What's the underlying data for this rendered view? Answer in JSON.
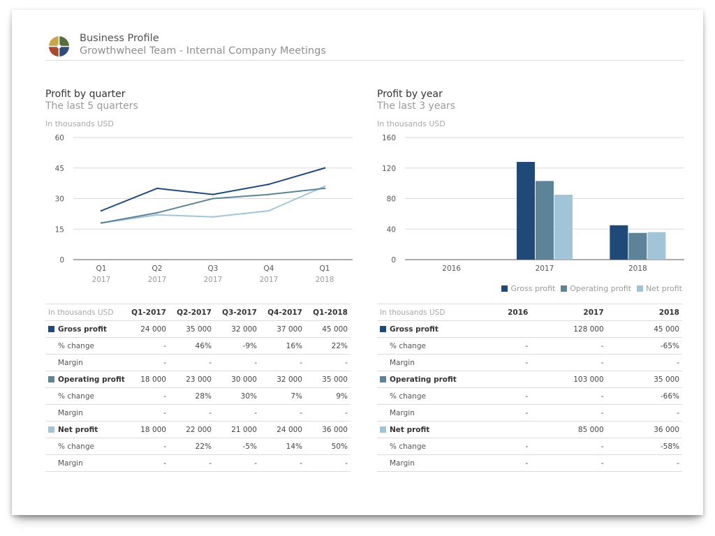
{
  "header": {
    "title": "Business Profile",
    "subtitle": "Growthwheel Team - Internal Company Meetings"
  },
  "colors": {
    "gross": "#1f4a78",
    "operating": "#5d8398",
    "net": "#a1c4d8",
    "logo": [
      "#c8a74a",
      "#566d3c",
      "#2f4b7c",
      "#a9492d"
    ]
  },
  "left_panel": {
    "title": "Profit by quarter",
    "subtitle": "The last 5 quarters",
    "unit": "In thousands USD"
  },
  "right_panel": {
    "title": "Profit by year",
    "subtitle": "The last 3 years",
    "unit": "In thousands USD"
  },
  "legend": [
    {
      "label": "Gross profit",
      "key": "gross"
    },
    {
      "label": "Operating profit",
      "key": "operating"
    },
    {
      "label": "Net profit",
      "key": "net"
    }
  ],
  "chart_data": [
    {
      "type": "line",
      "title": "Profit by quarter",
      "subtitle": "The last 5 quarters",
      "ylabel": "In thousands USD",
      "categories": [
        "Q1",
        "Q2",
        "Q3",
        "Q4",
        "Q1"
      ],
      "category_years": [
        "2017",
        "2017",
        "2017",
        "2017",
        "2018"
      ],
      "ylim": [
        0,
        60
      ],
      "yticks": [
        0,
        15,
        30,
        45,
        60
      ],
      "series": [
        {
          "name": "Gross profit",
          "key": "gross",
          "values": [
            24,
            35,
            32,
            37,
            45
          ]
        },
        {
          "name": "Operating profit",
          "key": "operating",
          "values": [
            18,
            23,
            30,
            32,
            35
          ]
        },
        {
          "name": "Net profit",
          "key": "net",
          "values": [
            18,
            22,
            21,
            24,
            36
          ]
        }
      ]
    },
    {
      "type": "bar",
      "title": "Profit by year",
      "subtitle": "The last 3 years",
      "ylabel": "In thousands USD",
      "categories": [
        "2016",
        "2017",
        "2018"
      ],
      "ylim": [
        0,
        160
      ],
      "yticks": [
        0,
        40,
        80,
        120,
        160
      ],
      "series": [
        {
          "name": "Gross profit",
          "key": "gross",
          "values": [
            null,
            128,
            45
          ]
        },
        {
          "name": "Operating profit",
          "key": "operating",
          "values": [
            null,
            103,
            35
          ]
        },
        {
          "name": "Net profit",
          "key": "net",
          "values": [
            null,
            85,
            36
          ]
        }
      ],
      "legend": "bottom-right"
    }
  ],
  "left_table": {
    "unit_label": "In thousands USD",
    "columns": [
      "Q1-2017",
      "Q2-2017",
      "Q3-2017",
      "Q4-2017",
      "Q1-2018"
    ],
    "rows": [
      {
        "label": "Gross profit",
        "type": "main",
        "key": "gross",
        "values": [
          "24 000",
          "35 000",
          "32 000",
          "37 000",
          "45 000"
        ]
      },
      {
        "label": "% change",
        "type": "sub",
        "values": [
          "-",
          "46%",
          "-9%",
          "16%",
          "22%"
        ]
      },
      {
        "label": "Margin",
        "type": "sub",
        "values": [
          "-",
          "-",
          "-",
          "-",
          "-"
        ]
      },
      {
        "label": "Operating profit",
        "type": "main",
        "key": "operating",
        "values": [
          "18 000",
          "23 000",
          "30 000",
          "32 000",
          "35 000"
        ]
      },
      {
        "label": "% change",
        "type": "sub",
        "values": [
          "-",
          "28%",
          "30%",
          "7%",
          "9%"
        ]
      },
      {
        "label": "Margin",
        "type": "sub",
        "values": [
          "-",
          "-",
          "-",
          "-",
          "-"
        ]
      },
      {
        "label": "Net profit",
        "type": "main",
        "key": "net",
        "values": [
          "18 000",
          "22 000",
          "21 000",
          "24 000",
          "36 000"
        ]
      },
      {
        "label": "% change",
        "type": "sub",
        "values": [
          "-",
          "22%",
          "-5%",
          "14%",
          "50%"
        ]
      },
      {
        "label": "Margin",
        "type": "sub",
        "values": [
          "-",
          "-",
          "-",
          "-",
          "-"
        ]
      }
    ]
  },
  "right_table": {
    "unit_label": "In thousands USD",
    "columns": [
      "2016",
      "2017",
      "2018"
    ],
    "rows": [
      {
        "label": "Gross profit",
        "type": "main",
        "key": "gross",
        "values": [
          "",
          "128 000",
          "45 000"
        ]
      },
      {
        "label": "% change",
        "type": "sub",
        "values": [
          "-",
          "-",
          "-65%"
        ]
      },
      {
        "label": "Margin",
        "type": "sub",
        "values": [
          "-",
          "-",
          "-"
        ]
      },
      {
        "label": "Operating profit",
        "type": "main",
        "key": "operating",
        "values": [
          "",
          "103 000",
          "35 000"
        ]
      },
      {
        "label": "% change",
        "type": "sub",
        "values": [
          "-",
          "-",
          "-66%"
        ]
      },
      {
        "label": "Margin",
        "type": "sub",
        "values": [
          "-",
          "-",
          "-"
        ]
      },
      {
        "label": "Net profit",
        "type": "main",
        "key": "net",
        "values": [
          "",
          "85 000",
          "36 000"
        ]
      },
      {
        "label": "% change",
        "type": "sub",
        "values": [
          "-",
          "-",
          "-58%"
        ]
      },
      {
        "label": "Margin",
        "type": "sub",
        "values": [
          "-",
          "-",
          "-"
        ]
      }
    ]
  }
}
